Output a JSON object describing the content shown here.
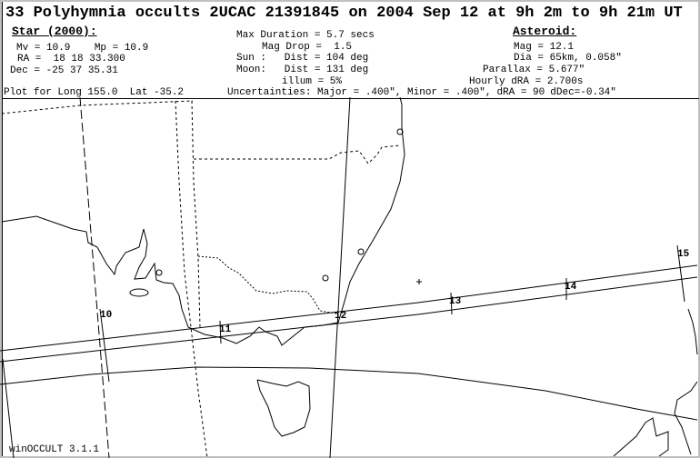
{
  "title": "33 Polyhymnia occults 2UCAC 21391845 on 2004 Sep 12 at 9h 2m to 9h 21m UT",
  "star": {
    "heading": "Star (2000):",
    "mags": "Mv = 10.9    Mp = 10.9",
    "ra": "RA =  18 18 33.300",
    "dec": "Dec = -25 37 35.31"
  },
  "event": {
    "max_duration": "Max Duration = 5.7 secs",
    "mag_drop": "Mag Drop =  1.5",
    "sun": "Sun :   Dist = 104 deg",
    "moon": "Moon:   Dist = 131 deg",
    "illum": "illum = 5%"
  },
  "asteroid": {
    "heading": "Asteroid:",
    "mag": "Mag = 12.1",
    "dia": "Dia = 65km, 0.058\"",
    "parallax": "Parallax = 5.677\"",
    "hourly_dra": "Hourly dRA = 2.700s"
  },
  "plot_for": "Plot for Long 155.0  Lat -35.2",
  "uncertainties": "Uncertainties: Major = .400\", Minor = .400\",",
  "overlap_a": "dRA = 90",
  "overlap_b": "dDec=-0.34\"",
  "map": {
    "time_ticks": [
      "10",
      "11",
      "12",
      "13",
      "14",
      "15"
    ],
    "footer": "winOCCULT 3.1.1"
  }
}
